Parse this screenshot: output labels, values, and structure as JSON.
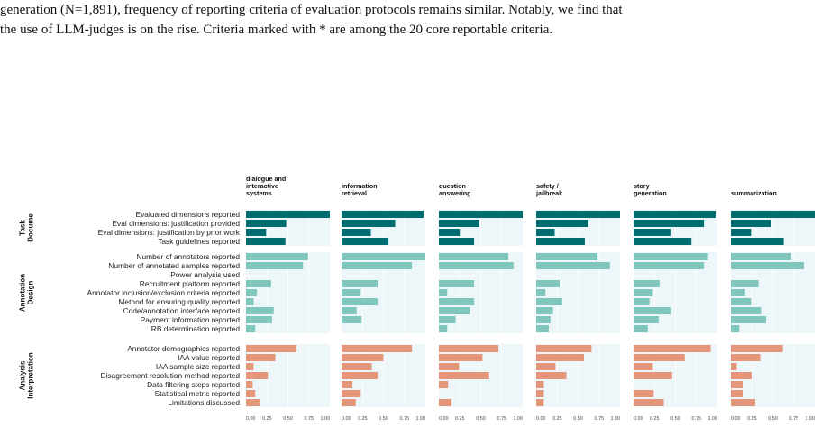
{
  "caption": {
    "line1": "generation (N=1,891), frequency of reporting criteria of evaluation protocols remains similar. Notably, we find that",
    "line2": "the use of LLM-judges is on the rise. Criteria marked with * are among the 20 core reportable criteria."
  },
  "colors": {
    "task": "#006d70",
    "annotation": "#7fc7bd",
    "analysis": "#e4957a",
    "panel_bg": "#edf6f8"
  },
  "chart_data": {
    "type": "bar",
    "orientation": "horizontal",
    "facets": [
      "dialogue and interactive systems",
      "information retrieval",
      "question answering",
      "safety / jailbreak",
      "story generation",
      "summarization"
    ],
    "groups": [
      {
        "name": "Task Docume",
        "color_key": "task",
        "criteria": [
          "Evaluated dimensions reported",
          "Eval dimensions: justification provided",
          "Eval dimensions: justification by prior work",
          "Task guidelines reported"
        ]
      },
      {
        "name": "Annotation Design",
        "color_key": "annotation",
        "criteria": [
          "Number of annotators reported",
          "Number of annotated samples reported",
          "Power analysis used",
          "Recruitment platform reported",
          "Annotator inclusion/exclusion criteria reported",
          "Method for ensuring quality reported",
          "Code/annotation interface reported",
          "Payment information reported",
          "IRB determination reported"
        ]
      },
      {
        "name": "Analysis Interpretation",
        "color_key": "analysis",
        "criteria": [
          "Annotator demographics reported",
          "IAA value reported",
          "IAA sample size reported",
          "Disagreement resolution method reported",
          "Data filtering steps reported",
          "Statistical metric reported",
          "Limitations discussed"
        ]
      }
    ],
    "values": [
      [
        [
          1.0,
          0.48,
          0.24,
          0.47
        ],
        [
          0.74,
          0.68,
          0.0,
          0.3,
          0.13,
          0.09,
          0.33,
          0.31,
          0.11
        ],
        [
          0.6,
          0.35,
          0.09,
          0.26,
          0.08,
          0.11,
          0.16
        ]
      ],
      [
        [
          0.98,
          0.64,
          0.35,
          0.56
        ],
        [
          1.0,
          0.84,
          0.0,
          0.43,
          0.23,
          0.43,
          0.18,
          0.24,
          0.0
        ],
        [
          0.84,
          0.5,
          0.36,
          0.43,
          0.13,
          0.23,
          0.17
        ]
      ],
      [
        [
          1.0,
          0.48,
          0.25,
          0.42
        ],
        [
          0.83,
          0.89,
          0.0,
          0.42,
          0.1,
          0.42,
          0.37,
          0.2,
          0.1
        ],
        [
          0.71,
          0.52,
          0.24,
          0.6,
          0.11,
          0.0,
          0.15
        ]
      ],
      [
        [
          1.0,
          0.62,
          0.22,
          0.58
        ],
        [
          0.73,
          0.88,
          0.0,
          0.28,
          0.11,
          0.31,
          0.2,
          0.17,
          0.15
        ],
        [
          0.66,
          0.57,
          0.23,
          0.36,
          0.09,
          0.09,
          0.09
        ]
      ],
      [
        [
          0.98,
          0.84,
          0.45,
          0.69
        ],
        [
          0.89,
          0.84,
          0.0,
          0.31,
          0.23,
          0.19,
          0.45,
          0.3,
          0.17
        ],
        [
          0.92,
          0.61,
          0.23,
          0.46,
          0.0,
          0.24,
          0.36
        ]
      ],
      [
        [
          1.0,
          0.48,
          0.24,
          0.63
        ],
        [
          0.72,
          0.87,
          0.0,
          0.33,
          0.17,
          0.24,
          0.36,
          0.42,
          0.1
        ],
        [
          0.62,
          0.35,
          0.07,
          0.25,
          0.14,
          0.14,
          0.29
        ]
      ]
    ],
    "xlim": [
      0,
      1
    ],
    "x_ticks": [
      "0.00",
      "0.25",
      "0.50",
      "0.75",
      "1.00"
    ],
    "title": "",
    "xlabel": "",
    "ylabel": ""
  }
}
